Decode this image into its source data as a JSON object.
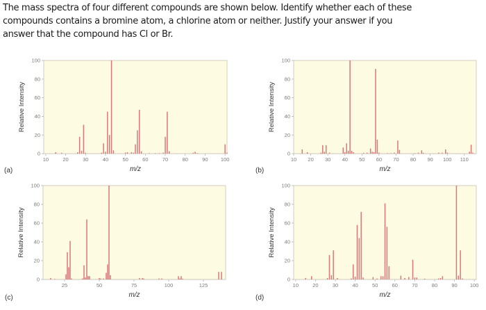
{
  "prompt": {
    "line1": "The mass spectra of four different compounds are shown below. Identify whether each of these",
    "line2": "compounds contains a bromine atom, a chlorine atom or neither. Justify your answer if you",
    "line3": "answer that the compound has Cl or Br."
  },
  "colors": {
    "plot_background": "#fdfbe2",
    "bar": "#d9787c",
    "frame": "#c9c3b5",
    "tick_text": "#7a7a7a"
  },
  "chart_data": [
    {
      "id": "a",
      "panel_label": "(a)",
      "type": "bar",
      "title": "",
      "xlabel": "m/z",
      "ylabel": "Relative Intensity",
      "xlim": [
        9,
        101
      ],
      "ylim": [
        0,
        100
      ],
      "xticks": [
        10,
        20,
        30,
        40,
        50,
        60,
        70,
        80,
        90,
        100
      ],
      "yticks": [
        0,
        20,
        40,
        60,
        80,
        100
      ],
      "grid": false,
      "peaks": [
        [
          15,
          1.5
        ],
        [
          18,
          0.8
        ],
        [
          26,
          1.5
        ],
        [
          27,
          18
        ],
        [
          28,
          3
        ],
        [
          29,
          31
        ],
        [
          30,
          0.8
        ],
        [
          38,
          1
        ],
        [
          39,
          11
        ],
        [
          40,
          2
        ],
        [
          41,
          45
        ],
        [
          42,
          20
        ],
        [
          43,
          100
        ],
        [
          44,
          3.5
        ],
        [
          50,
          1
        ],
        [
          51,
          1.5
        ],
        [
          53,
          1.5
        ],
        [
          54,
          1
        ],
        [
          55,
          10
        ],
        [
          56,
          25
        ],
        [
          57,
          47
        ],
        [
          58,
          2.5
        ],
        [
          62,
          0.5
        ],
        [
          65,
          0.5
        ],
        [
          67,
          0.5
        ],
        [
          69,
          1
        ],
        [
          70,
          18
        ],
        [
          71,
          45
        ],
        [
          72,
          2.5
        ],
        [
          84,
          0.8
        ],
        [
          85,
          2
        ],
        [
          86,
          0.5
        ],
        [
          100,
          10
        ],
        [
          101,
          1
        ]
      ]
    },
    {
      "id": "b",
      "panel_label": "(b)",
      "type": "bar",
      "title": "",
      "xlabel": "m/z",
      "ylabel": "Relative Intensity",
      "xlim": [
        10,
        117
      ],
      "ylim": [
        0,
        100
      ],
      "xticks": [
        10,
        20,
        30,
        40,
        50,
        60,
        70,
        80,
        90,
        100,
        110
      ],
      "yticks": [
        0,
        20,
        40,
        60,
        80,
        100
      ],
      "grid": false,
      "peaks": [
        [
          15,
          4.5
        ],
        [
          18,
          1.5
        ],
        [
          26,
          1
        ],
        [
          27,
          9
        ],
        [
          28,
          2
        ],
        [
          29,
          9
        ],
        [
          31,
          1
        ],
        [
          39,
          6.5
        ],
        [
          40,
          1.5
        ],
        [
          41,
          11
        ],
        [
          42,
          3
        ],
        [
          43,
          100
        ],
        [
          44,
          3
        ],
        [
          45,
          1.5
        ],
        [
          51,
          0.8
        ],
        [
          53,
          1
        ],
        [
          55,
          5.5
        ],
        [
          56,
          2
        ],
        [
          57,
          1.5
        ],
        [
          58,
          91
        ],
        [
          59,
          15
        ],
        [
          60,
          1
        ],
        [
          65,
          0.5
        ],
        [
          67,
          0.5
        ],
        [
          69,
          1
        ],
        [
          71,
          14
        ],
        [
          72,
          4
        ],
        [
          81,
          0.5
        ],
        [
          83,
          1
        ],
        [
          85,
          3.5
        ],
        [
          86,
          0.8
        ],
        [
          95,
          1
        ],
        [
          97,
          1
        ],
        [
          99,
          4.5
        ],
        [
          100,
          1
        ],
        [
          113,
          2
        ],
        [
          114,
          9.5
        ],
        [
          115,
          1
        ]
      ]
    },
    {
      "id": "c",
      "panel_label": "(c)",
      "type": "bar",
      "title": "",
      "xlabel": "m/z",
      "ylabel": "Relative Intensity",
      "xlim": [
        9.5,
        141
      ],
      "ylim": [
        0,
        100
      ],
      "xticks": [
        25,
        50,
        75,
        100,
        125
      ],
      "yticks": [
        0,
        20,
        40,
        60,
        80,
        100
      ],
      "grid": false,
      "peaks": [
        [
          15,
          1.5
        ],
        [
          18,
          0.5
        ],
        [
          26,
          5.5
        ],
        [
          27,
          29
        ],
        [
          28,
          13
        ],
        [
          29,
          41
        ],
        [
          30,
          1
        ],
        [
          38,
          1
        ],
        [
          39,
          15
        ],
        [
          40,
          2
        ],
        [
          41,
          64
        ],
        [
          42,
          3.5
        ],
        [
          43,
          3.5
        ],
        [
          50,
          1.5
        ],
        [
          51,
          1
        ],
        [
          53,
          1
        ],
        [
          55,
          7
        ],
        [
          56,
          16
        ],
        [
          57,
          100
        ],
        [
          58,
          4.5
        ],
        [
          79,
          1.5
        ],
        [
          81,
          1.5
        ],
        [
          82,
          1
        ],
        [
          93,
          1
        ],
        [
          95,
          1
        ],
        [
          107,
          3.5
        ],
        [
          108,
          1
        ],
        [
          109,
          3.5
        ],
        [
          110,
          0.8
        ],
        [
          136,
          8
        ],
        [
          138,
          8
        ]
      ]
    },
    {
      "id": "d",
      "panel_label": "(d)",
      "type": "bar",
      "title": "",
      "xlabel": "m/z",
      "ylabel": "Relative Intensity",
      "xlim": [
        9,
        101
      ],
      "ylim": [
        0,
        100
      ],
      "xticks": [
        10,
        20,
        30,
        40,
        50,
        60,
        70,
        80,
        90,
        100
      ],
      "yticks": [
        0,
        20,
        40,
        60,
        80,
        100
      ],
      "grid": false,
      "peaks": [
        [
          15,
          1.5
        ],
        [
          18,
          3.5
        ],
        [
          26,
          1.5
        ],
        [
          27,
          26
        ],
        [
          28,
          4.5
        ],
        [
          29,
          31
        ],
        [
          31,
          1.5
        ],
        [
          38,
          1
        ],
        [
          39,
          16
        ],
        [
          40,
          3
        ],
        [
          41,
          58
        ],
        [
          42,
          44
        ],
        [
          43,
          72
        ],
        [
          44,
          2
        ],
        [
          49,
          2.5
        ],
        [
          51,
          1
        ],
        [
          53,
          3.5
        ],
        [
          54,
          3.5
        ],
        [
          55,
          81
        ],
        [
          56,
          56
        ],
        [
          57,
          14
        ],
        [
          63,
          4
        ],
        [
          65,
          1.5
        ],
        [
          67,
          2.5
        ],
        [
          69,
          21
        ],
        [
          70,
          2
        ],
        [
          71,
          2
        ],
        [
          75,
          0.8
        ],
        [
          82,
          1
        ],
        [
          83,
          1.5
        ],
        [
          84,
          3.5
        ],
        [
          91,
          100
        ],
        [
          92,
          4
        ],
        [
          93,
          31
        ],
        [
          94,
          1
        ]
      ]
    }
  ]
}
